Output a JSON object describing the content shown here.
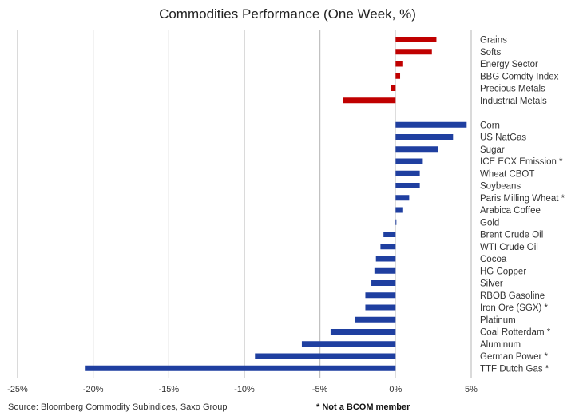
{
  "chart_data": {
    "type": "bar",
    "orientation": "horizontal",
    "title": "Commodities Performance (One Week, %)",
    "xlim": [
      -25,
      5
    ],
    "xticks": [
      -25,
      -20,
      -15,
      -10,
      -5,
      0,
      5
    ],
    "xtick_labels": [
      "-25%",
      "-20%",
      "-15%",
      "-10%",
      "-5%",
      "0%",
      "5%"
    ],
    "grid": "vertical",
    "groups": [
      {
        "color": "#C00000",
        "categories": [
          "Grains",
          "Softs",
          "Energy Sector",
          "BBG Comdty Index",
          "Precious Metals",
          "Industrial Metals"
        ],
        "values": [
          2.7,
          2.4,
          0.5,
          0.3,
          -0.3,
          -3.5
        ]
      },
      {
        "color": "#1F3FA0",
        "categories": [
          "Corn",
          "US NatGas",
          "Sugar",
          "ICE ECX Emission *",
          "Wheat CBOT",
          "Soybeans",
          "Paris Milling Wheat *",
          "Arabica Coffee",
          "Gold",
          "Brent Crude Oil",
          "WTI Crude Oil",
          "Cocoa",
          "HG Copper",
          "Silver",
          "RBOB Gasoline",
          "Iron Ore (SGX) *",
          "Platinum",
          "Coal Rotterdam *",
          "Aluminum",
          "German Power *",
          "TTF Dutch Gas *"
        ],
        "values": [
          4.7,
          3.8,
          2.8,
          1.8,
          1.6,
          1.6,
          0.9,
          0.5,
          0.05,
          -0.8,
          -1.0,
          -1.3,
          -1.4,
          -1.6,
          -2.0,
          -2.0,
          -2.7,
          -4.3,
          -6.2,
          -9.3,
          -20.5
        ]
      }
    ]
  },
  "footer": {
    "source": "Source: Bloomberg Commodity Subindices, Saxo Group",
    "note": "* Not a BCOM member"
  }
}
